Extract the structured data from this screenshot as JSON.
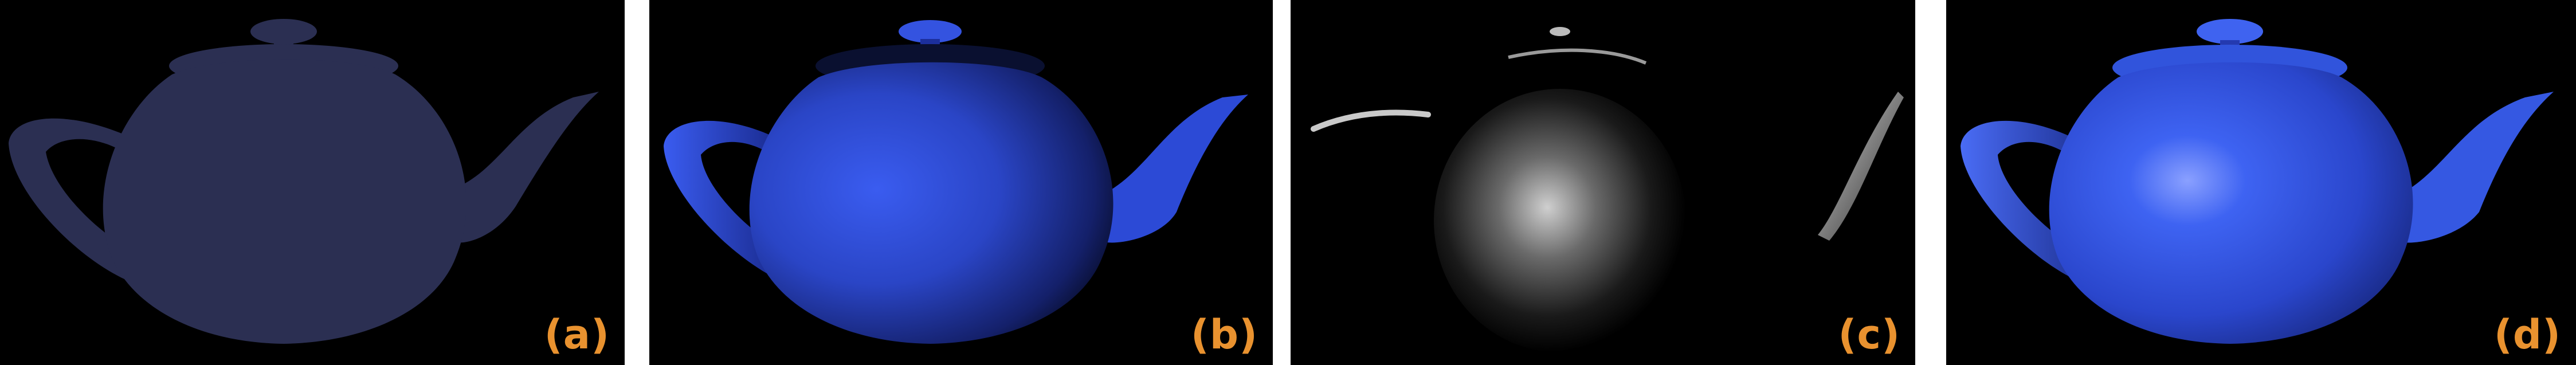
{
  "panels": [
    {
      "id": "a",
      "label": "(a)"
    },
    {
      "id": "b",
      "label": "(b)"
    },
    {
      "id": "c",
      "label": "(c)"
    },
    {
      "id": "d",
      "label": "(d)"
    }
  ],
  "colors": {
    "background": "#000000",
    "label": "#e9922f",
    "flat_teapot": "#2b2f52",
    "diffuse_blue": "#2b45c8",
    "specular_white": "#e8e8e8",
    "combined_blue": "#2f55e0"
  }
}
